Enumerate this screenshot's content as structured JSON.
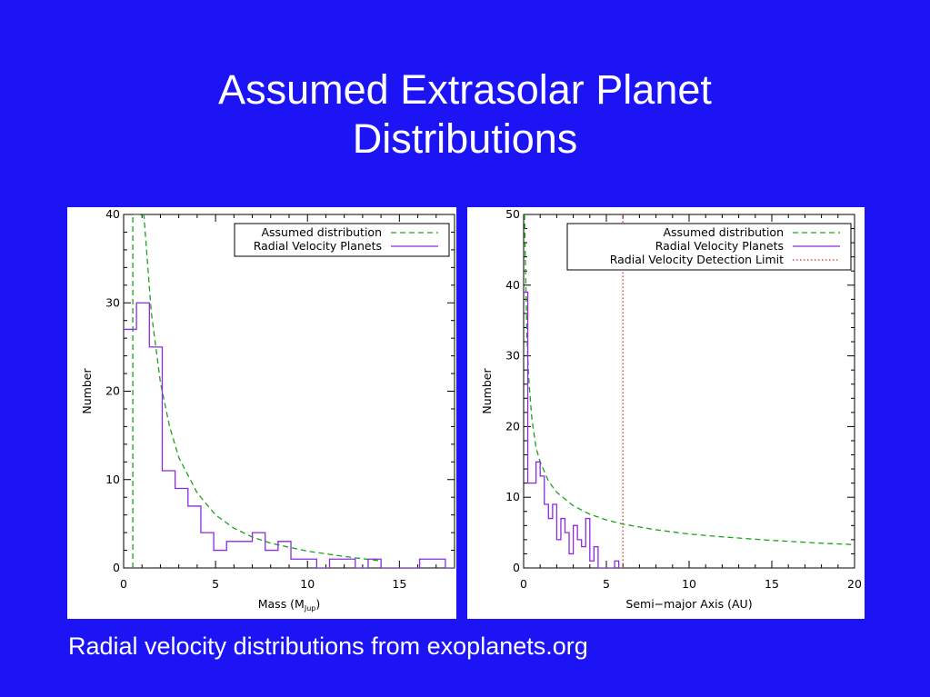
{
  "slide": {
    "title_line1": "Assumed Extrasolar Planet",
    "title_line2": "Distributions",
    "caption": "Radial velocity distributions from exoplanets.org"
  },
  "colors": {
    "background": "#1c14f5",
    "assumed": "#1aa31a",
    "rv_planets": "#8a2be2",
    "detection_limit": "#e0301e"
  },
  "chart_data": [
    {
      "type": "line",
      "xlabel": "Mass (M",
      "xlabel_sub": "Jup",
      "xlabel_end": ")",
      "ylabel": "Number",
      "xlim": [
        0,
        18
      ],
      "ylim": [
        0,
        40
      ],
      "xticks": [
        0,
        5,
        10,
        15
      ],
      "yticks": [
        0,
        10,
        20,
        30,
        40
      ],
      "legend_position": "top-right",
      "series": [
        {
          "name": "Assumed distribution",
          "style": "dashed",
          "color": "#1aa31a",
          "x": [
            0.5,
            0.5,
            1.1,
            1.5,
            2.0,
            2.5,
            3.0,
            4.0,
            5.0,
            6.0,
            7.0,
            8.0,
            10.0,
            12.0,
            14.0
          ],
          "y": [
            0,
            40,
            40,
            29,
            21,
            16,
            12.5,
            8.5,
            6.0,
            4.5,
            3.5,
            2.8,
            1.9,
            1.3,
            0.8
          ]
        },
        {
          "name": "Radial Velocity Planets",
          "style": "histogram",
          "color": "#8a2be2",
          "bin_width": 0.7,
          "bin_edges": [
            0.0,
            0.7,
            1.4,
            2.1,
            2.8,
            3.5,
            4.2,
            4.9,
            5.6,
            6.3,
            7.0,
            7.7,
            8.4,
            9.1,
            9.8,
            10.5,
            11.2,
            11.9,
            12.6,
            13.3,
            14.0,
            14.7,
            15.4,
            16.1,
            16.8,
            17.5,
            18.0
          ],
          "counts": [
            27,
            30,
            25,
            11,
            9,
            7,
            4,
            2,
            3,
            3,
            4,
            2,
            3,
            1,
            1,
            0,
            1,
            1,
            0,
            1,
            0,
            0,
            0,
            1,
            1,
            0
          ]
        }
      ]
    },
    {
      "type": "line",
      "xlabel": "Semi−major Axis (AU)",
      "ylabel": "Number",
      "xlim": [
        0,
        20
      ],
      "ylim": [
        0,
        50
      ],
      "xticks": [
        0,
        5,
        10,
        15,
        20
      ],
      "yticks": [
        0,
        10,
        20,
        30,
        40,
        50
      ],
      "legend_position": "top-right",
      "series": [
        {
          "name": "Assumed distribution",
          "style": "dashed",
          "color": "#1aa31a",
          "x": [
            0.05,
            0.1,
            0.2,
            0.3,
            0.5,
            0.75,
            1.0,
            1.5,
            2.0,
            3.0,
            4.0,
            5.0,
            6.0,
            8.0,
            10.0,
            12.0,
            15.0,
            18.0,
            20.0
          ],
          "y": [
            50,
            44,
            33,
            27,
            21,
            17,
            15,
            12.3,
            10.7,
            8.8,
            7.6,
            6.8,
            6.2,
            5.4,
            4.8,
            4.4,
            3.9,
            3.5,
            3.3
          ]
        },
        {
          "name": "Radial Velocity Planets",
          "style": "histogram",
          "color": "#8a2be2",
          "bin_width": 0.25,
          "bin_edges": [
            0.0,
            0.25,
            0.5,
            0.75,
            1.0,
            1.25,
            1.5,
            1.75,
            2.0,
            2.25,
            2.5,
            2.75,
            3.0,
            3.25,
            3.5,
            3.75,
            4.0,
            4.25,
            4.5,
            4.75,
            5.0,
            5.25,
            5.5,
            5.75,
            6.0
          ],
          "counts": [
            39,
            12,
            12,
            15,
            13,
            9,
            7,
            9,
            4,
            7,
            5,
            2,
            6,
            4,
            3,
            7,
            1,
            3,
            0,
            0,
            0,
            0,
            1,
            0
          ]
        },
        {
          "name": "Radial Velocity Detection Limit",
          "style": "dotted",
          "color": "#e0301e",
          "x": [
            6.0,
            6.0
          ],
          "y": [
            0,
            50
          ]
        }
      ]
    }
  ]
}
